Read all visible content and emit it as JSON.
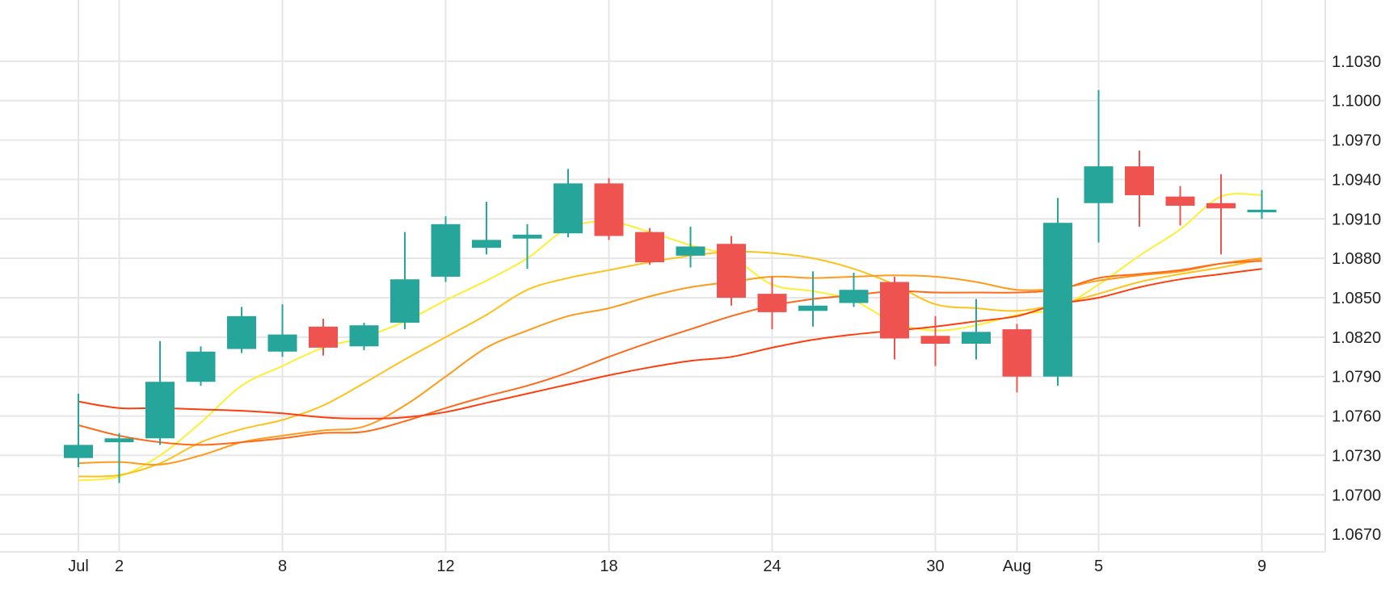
{
  "chart_data": {
    "type": "candlestick",
    "grid": true,
    "ylim": [
      1.064,
      1.106
    ],
    "y_ticks": [
      "1.0670",
      "1.0700",
      "1.0730",
      "1.0760",
      "1.0790",
      "1.0820",
      "1.0850",
      "1.0880",
      "1.0910",
      "1.0940",
      "1.0970",
      "1.1000",
      "1.1030"
    ],
    "x_ticks": [
      {
        "label": "Jul",
        "index": 0
      },
      {
        "label": "2",
        "index": 1
      },
      {
        "label": "8",
        "index": 5
      },
      {
        "label": "12",
        "index": 9
      },
      {
        "label": "18",
        "index": 13
      },
      {
        "label": "24",
        "index": 17
      },
      {
        "label": "30",
        "index": 21
      },
      {
        "label": "Aug",
        "index": 23
      },
      {
        "label": "5",
        "index": 25
      },
      {
        "label": "9",
        "index": 29
      }
    ],
    "candles": [
      {
        "o": 1.0728,
        "h": 1.0777,
        "l": 1.0721,
        "c": 1.0738
      },
      {
        "o": 1.074,
        "h": 1.0747,
        "l": 1.0709,
        "c": 1.0743
      },
      {
        "o": 1.0743,
        "h": 1.0817,
        "l": 1.0738,
        "c": 1.0786
      },
      {
        "o": 1.0786,
        "h": 1.0813,
        "l": 1.0783,
        "c": 1.0809
      },
      {
        "o": 1.0811,
        "h": 1.0843,
        "l": 1.0808,
        "c": 1.0836
      },
      {
        "o": 1.0809,
        "h": 1.0845,
        "l": 1.0805,
        "c": 1.0822
      },
      {
        "o": 1.0828,
        "h": 1.0834,
        "l": 1.0806,
        "c": 1.0812
      },
      {
        "o": 1.0813,
        "h": 1.0831,
        "l": 1.081,
        "c": 1.0829
      },
      {
        "o": 1.0831,
        "h": 1.09,
        "l": 1.0826,
        "c": 1.0864
      },
      {
        "o": 1.0866,
        "h": 1.0912,
        "l": 1.0862,
        "c": 1.0906
      },
      {
        "o": 1.0888,
        "h": 1.0923,
        "l": 1.0883,
        "c": 1.0894
      },
      {
        "o": 1.0895,
        "h": 1.0906,
        "l": 1.0872,
        "c": 1.0898
      },
      {
        "o": 1.0899,
        "h": 1.0948,
        "l": 1.0896,
        "c": 1.0937
      },
      {
        "o": 1.0937,
        "h": 1.0941,
        "l": 1.0894,
        "c": 1.0897
      },
      {
        "o": 1.09,
        "h": 1.0903,
        "l": 1.0875,
        "c": 1.0877
      },
      {
        "o": 1.0882,
        "h": 1.0904,
        "l": 1.0873,
        "c": 1.0889
      },
      {
        "o": 1.0891,
        "h": 1.0897,
        "l": 1.0844,
        "c": 1.085
      },
      {
        "o": 1.0853,
        "h": 1.0866,
        "l": 1.0826,
        "c": 1.0839
      },
      {
        "o": 1.084,
        "h": 1.087,
        "l": 1.0828,
        "c": 1.0844
      },
      {
        "o": 1.0846,
        "h": 1.0869,
        "l": 1.0843,
        "c": 1.0856
      },
      {
        "o": 1.0862,
        "h": 1.0866,
        "l": 1.0803,
        "c": 1.0819
      },
      {
        "o": 1.0821,
        "h": 1.0836,
        "l": 1.0798,
        "c": 1.0815
      },
      {
        "o": 1.0815,
        "h": 1.0849,
        "l": 1.0803,
        "c": 1.0824
      },
      {
        "o": 1.0826,
        "h": 1.083,
        "l": 1.0778,
        "c": 1.079
      },
      {
        "o": 1.079,
        "h": 1.0926,
        "l": 1.0783,
        "c": 1.0907
      },
      {
        "o": 1.0922,
        "h": 1.1008,
        "l": 1.0892,
        "c": 1.095
      },
      {
        "o": 1.095,
        "h": 1.0962,
        "l": 1.0904,
        "c": 1.0928
      },
      {
        "o": 1.0927,
        "h": 1.0935,
        "l": 1.0905,
        "c": 1.092
      },
      {
        "o": 1.0922,
        "h": 1.0944,
        "l": 1.0883,
        "c": 1.0918
      },
      {
        "o": 1.0915,
        "h": 1.0932,
        "l": 1.091,
        "c": 1.0917
      }
    ],
    "moving_averages": [
      {
        "color": "#ffee33",
        "values": [
          1.0711,
          1.0714,
          1.073,
          1.0755,
          1.0783,
          1.0798,
          1.0812,
          1.082,
          1.0832,
          1.0848,
          1.0863,
          1.088,
          1.0903,
          1.0908,
          1.09,
          1.089,
          1.0881,
          1.086,
          1.0855,
          1.0848,
          1.0831,
          1.0825,
          1.0829,
          1.0837,
          1.0842,
          1.086,
          1.0882,
          1.0902,
          1.0927,
          1.0928
        ]
      },
      {
        "color": "#ffc21a",
        "values": [
          1.0714,
          1.0715,
          1.0724,
          1.074,
          1.075,
          1.0757,
          1.0768,
          1.0785,
          1.0803,
          1.082,
          1.0837,
          1.0856,
          1.0865,
          1.0871,
          1.0877,
          1.0882,
          1.0885,
          1.0884,
          1.088,
          1.0872,
          1.086,
          1.0845,
          1.0842,
          1.084,
          1.0845,
          1.0853,
          1.0862,
          1.0868,
          1.0873,
          1.0879
        ]
      },
      {
        "color": "#ff9a1a",
        "values": [
          1.0724,
          1.0725,
          1.0723,
          1.073,
          1.074,
          1.0745,
          1.0749,
          1.0752,
          1.0768,
          1.079,
          1.0812,
          1.0825,
          1.0836,
          1.0842,
          1.0851,
          1.0858,
          1.0862,
          1.0866,
          1.0865,
          1.0866,
          1.0867,
          1.0866,
          1.0862,
          1.0856,
          1.0857,
          1.0863,
          1.0867,
          1.087,
          1.0876,
          1.088
        ]
      },
      {
        "color": "#ff6a1a",
        "values": [
          1.0753,
          1.0745,
          1.074,
          1.0738,
          1.074,
          1.0743,
          1.0747,
          1.0748,
          1.0756,
          1.0766,
          1.0775,
          1.0783,
          1.0793,
          1.0805,
          1.0816,
          1.0826,
          1.0836,
          1.0844,
          1.0849,
          1.0852,
          1.0855,
          1.0854,
          1.0854,
          1.0854,
          1.0856,
          1.0865,
          1.0868,
          1.0871,
          1.0876,
          1.0878
        ]
      },
      {
        "color": "#ff3d0d",
        "values": [
          1.0771,
          1.0766,
          1.0766,
          1.0765,
          1.0764,
          1.0762,
          1.0759,
          1.0758,
          1.0759,
          1.0763,
          1.077,
          1.0777,
          1.0784,
          1.0791,
          1.0797,
          1.0802,
          1.0805,
          1.0812,
          1.0818,
          1.0822,
          1.0825,
          1.0828,
          1.0832,
          1.0836,
          1.0845,
          1.085,
          1.0858,
          1.0864,
          1.0868,
          1.0872
        ]
      }
    ],
    "colors": {
      "up": "#26a69a",
      "down": "#ef5350",
      "grid": "#e6e6e6",
      "axis_text": "#222222"
    }
  }
}
